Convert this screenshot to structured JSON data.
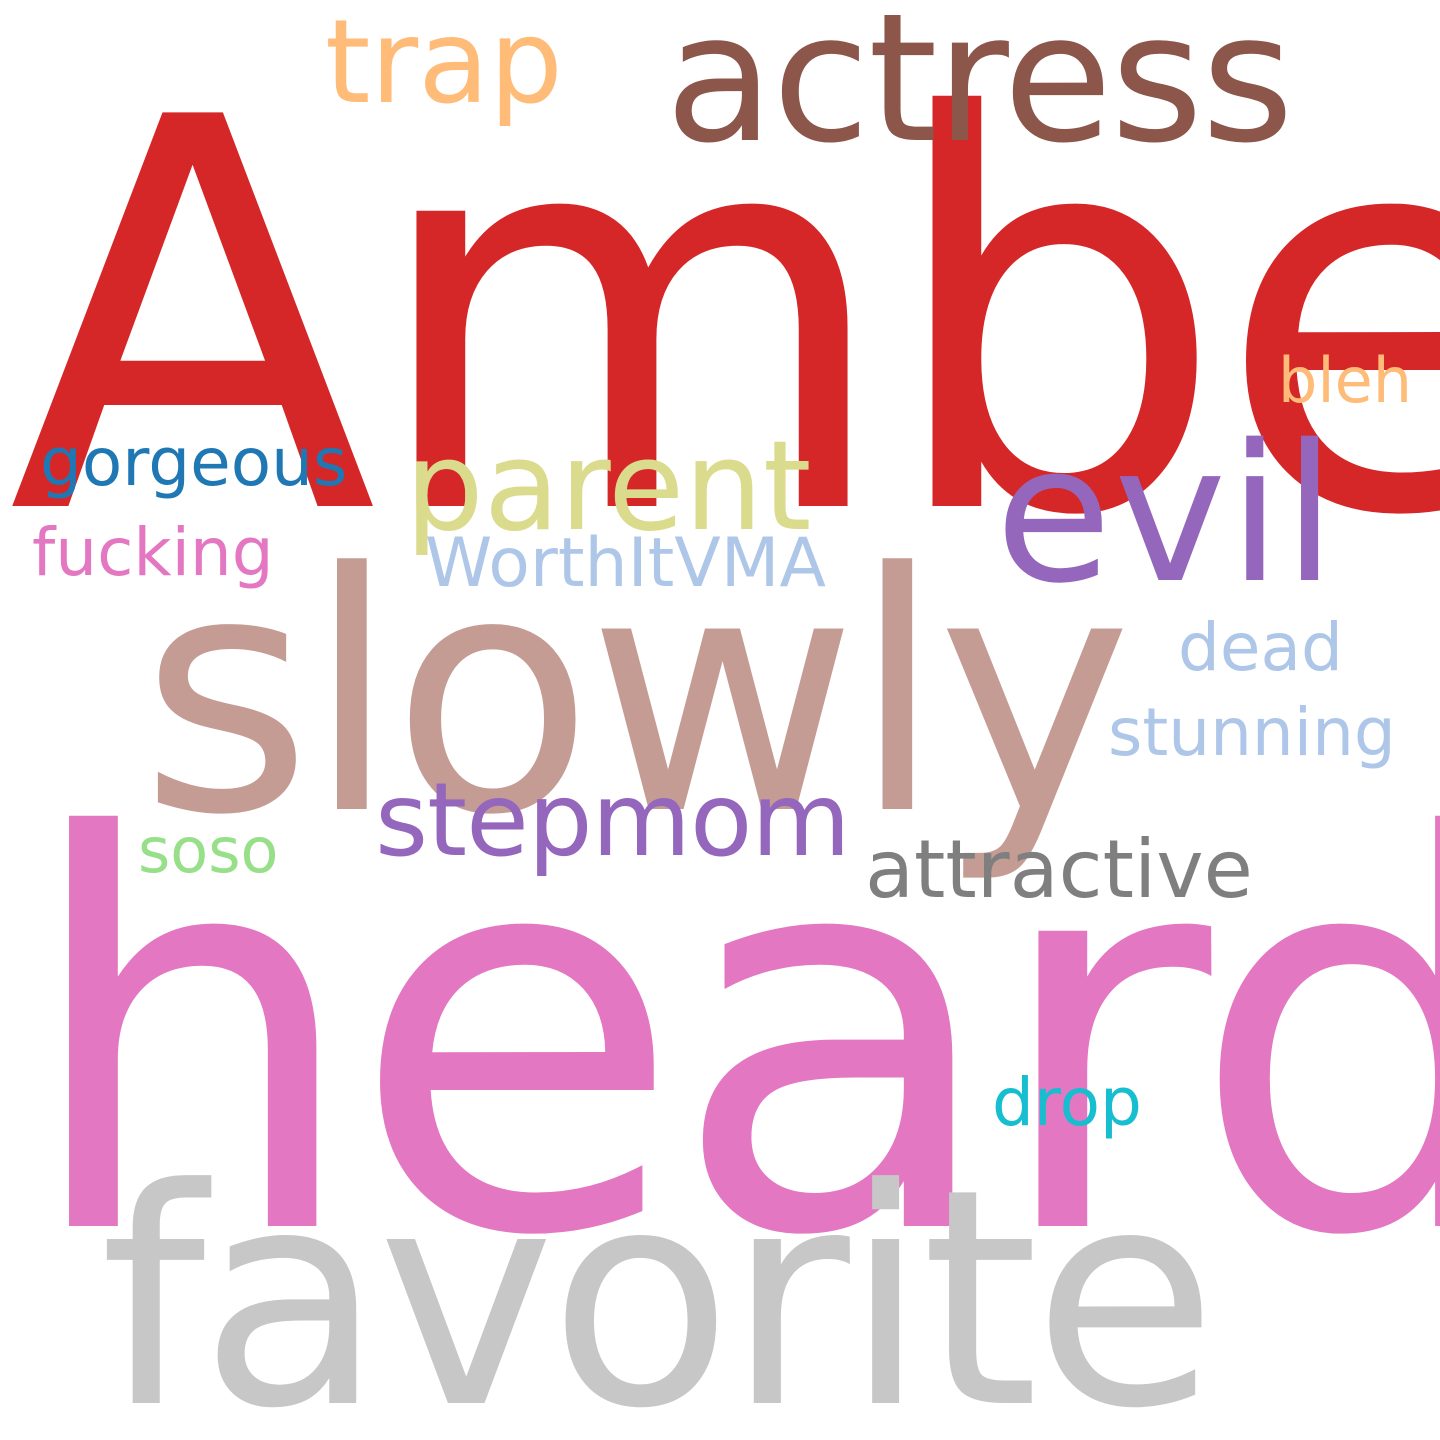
{
  "word_cloud": {
    "words": [
      {
        "id": "amber",
        "text": "Amber",
        "color": "#d62728"
      },
      {
        "id": "heard",
        "text": "heard",
        "color": "#e377c2"
      },
      {
        "id": "favorite",
        "text": "favorite",
        "color": "#c7c7c7"
      },
      {
        "id": "slowly",
        "text": "slowly",
        "color": "#c49c94"
      },
      {
        "id": "actress",
        "text": "actress",
        "color": "#8c564b"
      },
      {
        "id": "trap",
        "text": "trap",
        "color": "#ffbb78"
      },
      {
        "id": "evil",
        "text": "evil",
        "color": "#9467bd"
      },
      {
        "id": "parent",
        "text": "parent",
        "color": "#dbdb8d"
      },
      {
        "id": "stepmom",
        "text": "stepmom",
        "color": "#9467bd"
      },
      {
        "id": "attractive",
        "text": "attractive",
        "color": "#7f7f7f"
      },
      {
        "id": "stunning",
        "text": "stunning",
        "color": "#aec7e8"
      },
      {
        "id": "dead",
        "text": "dead",
        "color": "#aec7e8"
      },
      {
        "id": "bleh",
        "text": "bleh",
        "color": "#ffbb78"
      },
      {
        "id": "gorgeous",
        "text": "gorgeous",
        "color": "#1f77b4"
      },
      {
        "id": "fucking",
        "text": "fucking",
        "color": "#e377c2"
      },
      {
        "id": "worthitvma",
        "text": "WorthItVMA",
        "color": "#aec7e8"
      },
      {
        "id": "soso",
        "text": "soso",
        "color": "#98df8a"
      },
      {
        "id": "drop",
        "text": "drop",
        "color": "#17becf"
      }
    ]
  }
}
